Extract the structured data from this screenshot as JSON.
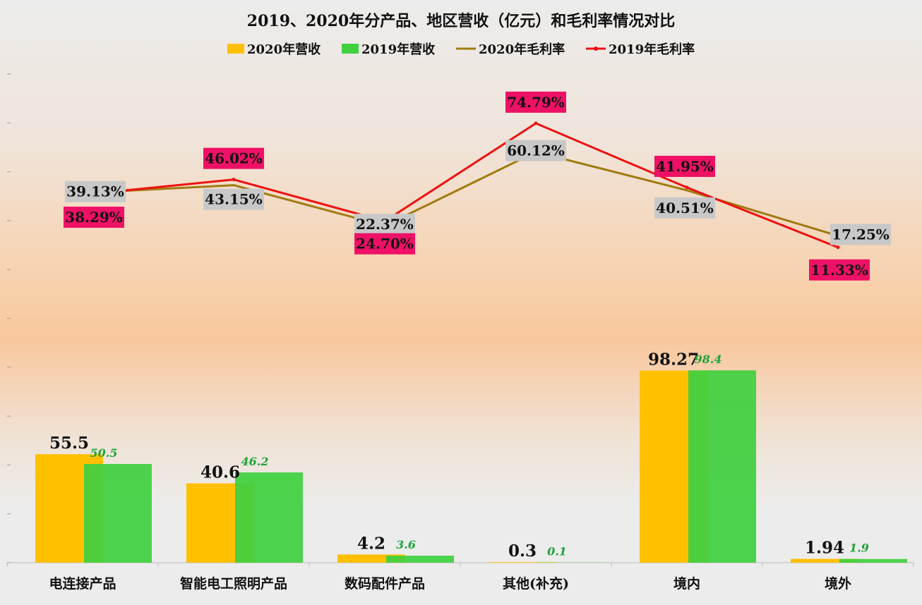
{
  "chart_data": {
    "type": "bar",
    "title": "2019、2020年分产品、地区营收（亿元）和毛利率情况对比",
    "categories": [
      "电连接产品",
      "智能电工照明产品",
      "数码配件产品",
      "其他(补充)",
      "境内",
      "境外"
    ],
    "series": [
      {
        "name": "2020年营收",
        "kind": "bar",
        "color": "#ffc000",
        "values": [
          55.5,
          40.6,
          4.2,
          0.3,
          98.27,
          1.94
        ],
        "labels": [
          "55.5",
          "40.6",
          "4.2",
          "0.3",
          "98.27",
          "1.94"
        ]
      },
      {
        "name": "2019年营收",
        "kind": "bar",
        "color": "#3fcf3f",
        "values": [
          50.5,
          46.2,
          3.6,
          0.1,
          98.4,
          1.9
        ],
        "labels": [
          "50.5",
          "46.2",
          "3.6",
          "0.1",
          "98.4",
          "1.9"
        ]
      },
      {
        "name": "2020年毛利率",
        "kind": "line",
        "color": "#a07a10",
        "values": [
          39.13,
          43.15,
          22.37,
          60.12,
          40.51,
          17.25
        ],
        "labels": [
          "39.13%",
          "43.15%",
          "22.37%",
          "60.12%",
          "40.51%",
          "17.25%"
        ]
      },
      {
        "name": "2019年毛利率",
        "kind": "line",
        "color": "#ee1111",
        "values": [
          38.29,
          46.02,
          24.7,
          74.79,
          41.95,
          11.33
        ],
        "labels": [
          "38.29%",
          "46.02%",
          "24.70%",
          "74.79%",
          "41.95%",
          "11.33%"
        ]
      }
    ],
    "legend_position": "top-center",
    "grid": false,
    "bar_ylim": [
      0,
      250
    ],
    "rate_ylim": [
      -150,
      100
    ],
    "rate_label_colors": {
      "2020": "#c8c8c8",
      "2019": "#ee1166"
    }
  }
}
